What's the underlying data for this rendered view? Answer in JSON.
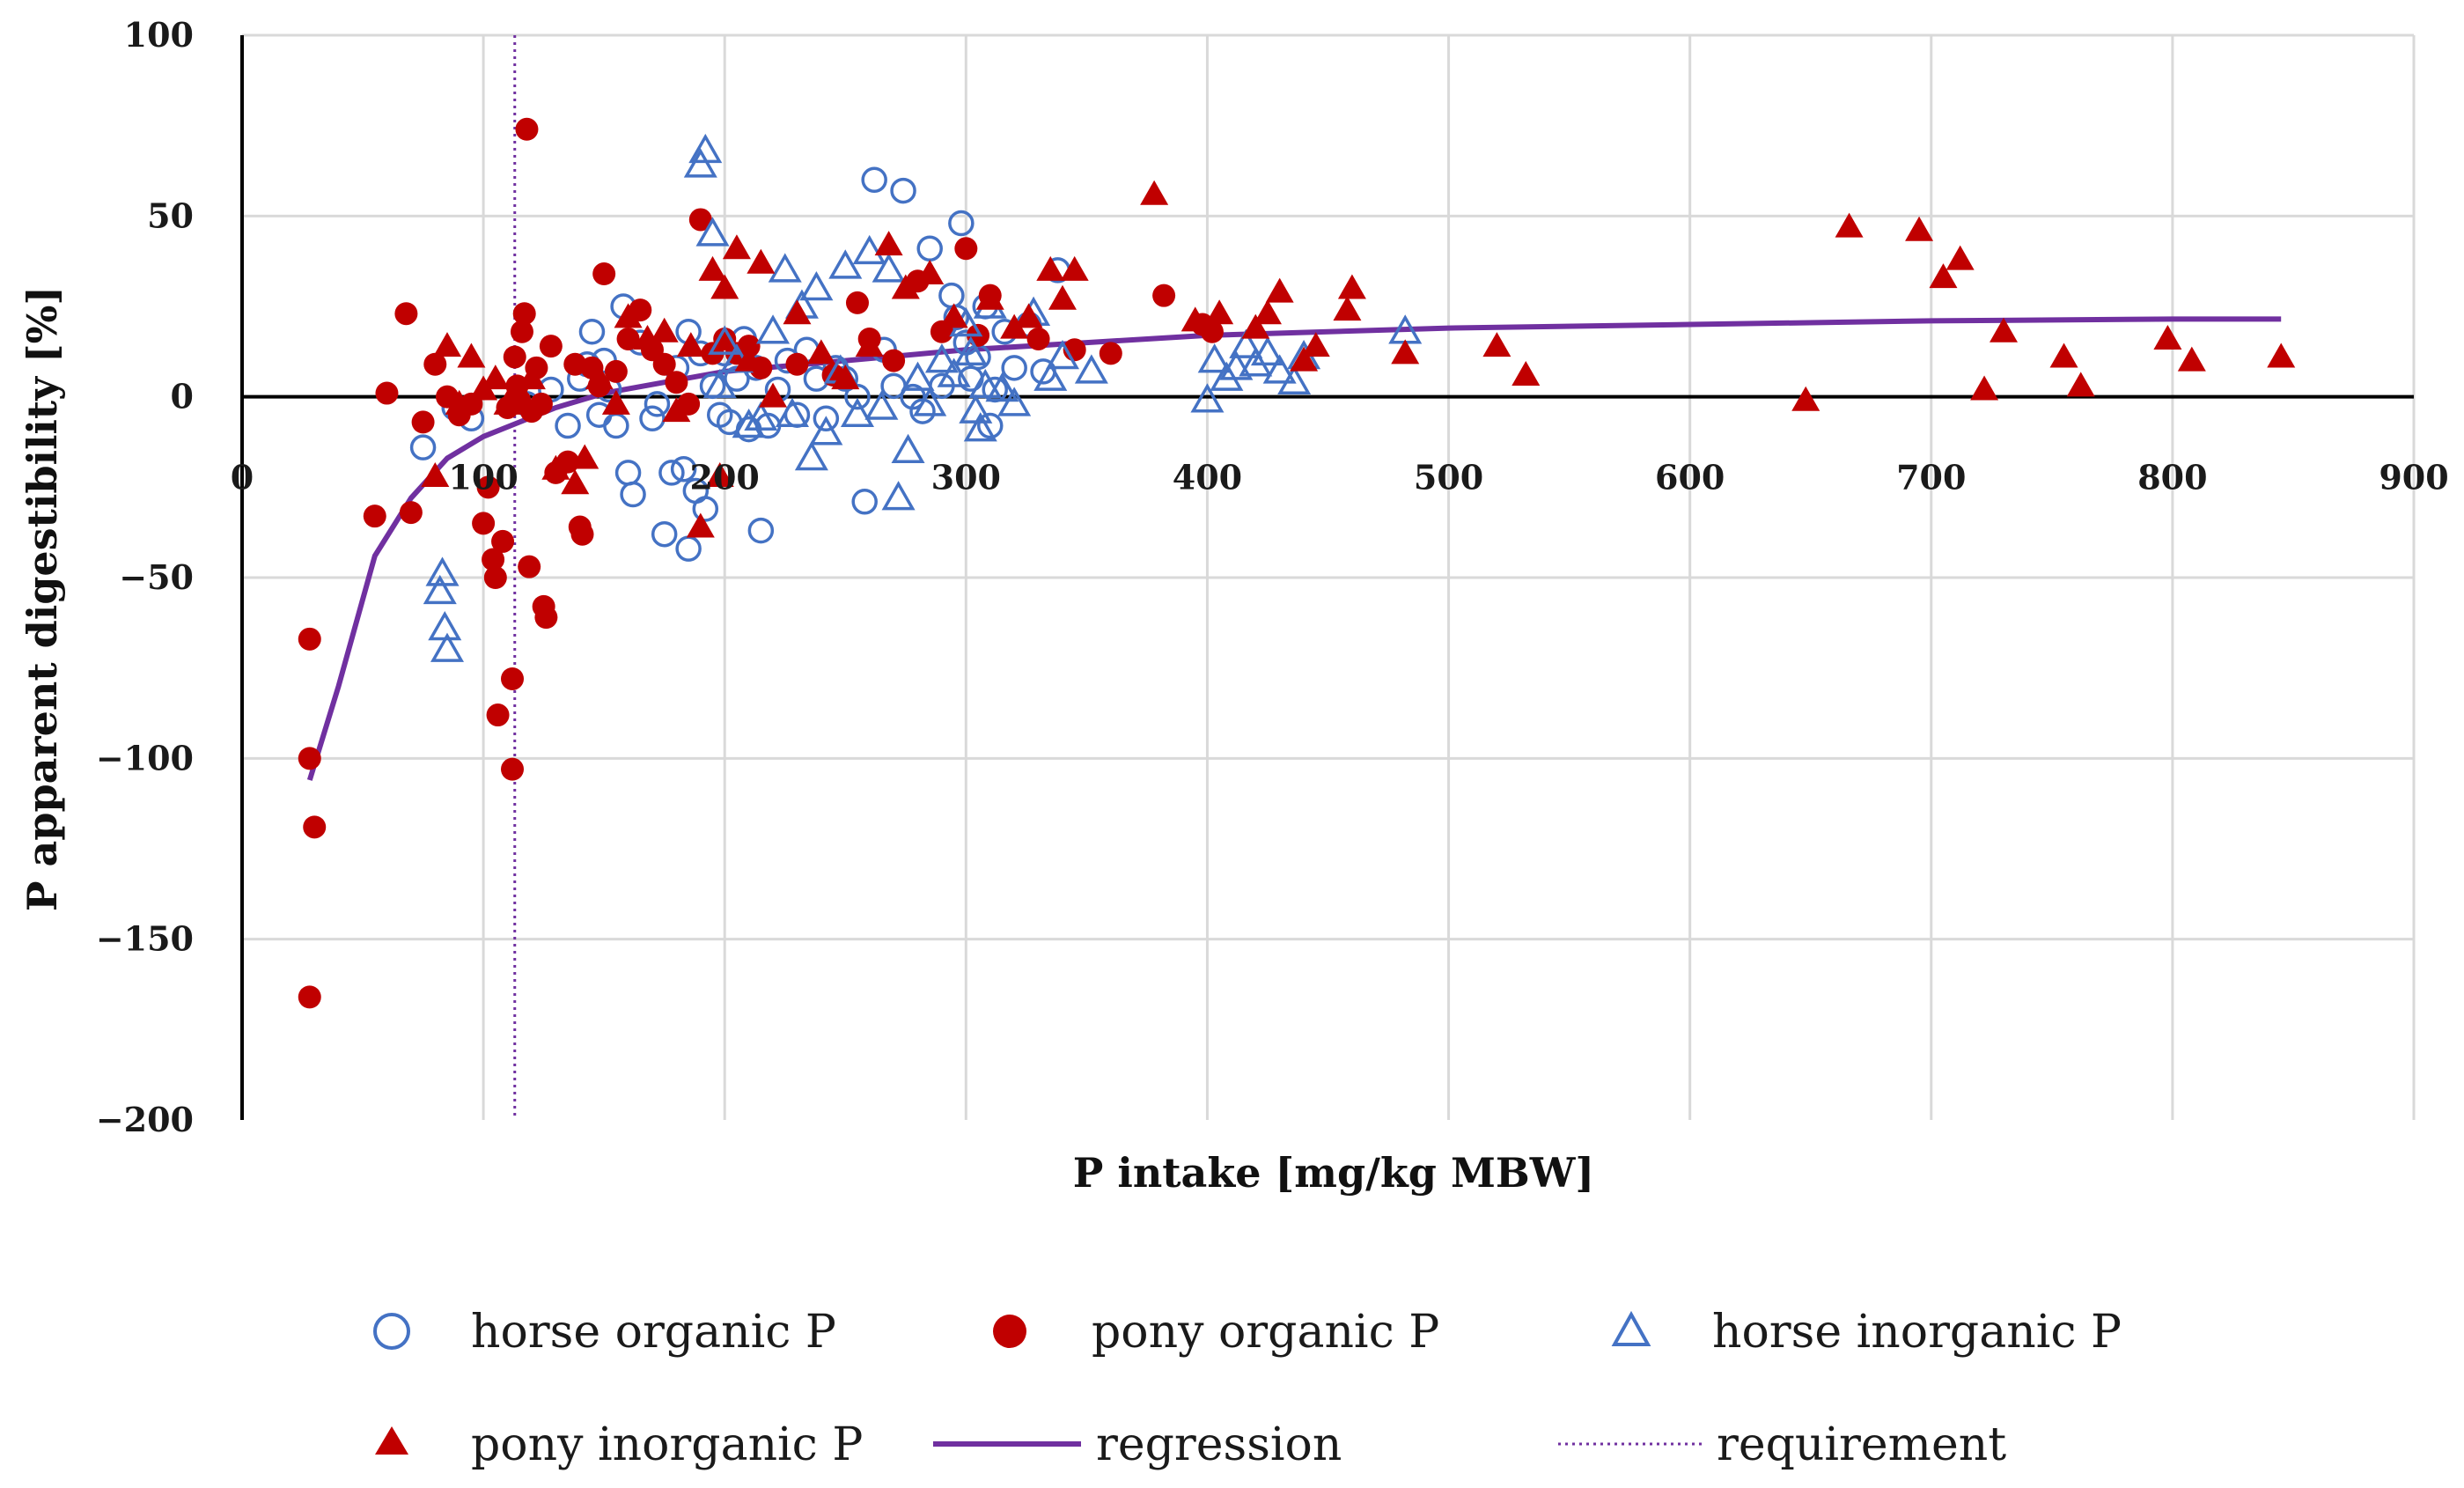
{
  "chart_data": {
    "type": "scatter",
    "title": "",
    "xlabel": "P intake [mg/kg MBW]",
    "ylabel": "P apparent digestibility [%]",
    "xlim": [
      0,
      900
    ],
    "ylim": [
      -200,
      100
    ],
    "x_ticks": [
      0,
      100,
      200,
      300,
      400,
      500,
      600,
      700,
      800,
      900
    ],
    "y_ticks": [
      100,
      50,
      0,
      -50,
      -100,
      -150,
      -200
    ],
    "y_tick_labels": [
      "100",
      "50",
      "0",
      "−50",
      "−100",
      "−150",
      "−200"
    ],
    "grid": true,
    "legend_position": "bottom",
    "colors": {
      "blue": "#4472c4",
      "red": "#c00000",
      "purple": "#7030a0"
    },
    "series": [
      {
        "name": "horse organic P",
        "marker": "circle-open",
        "color": "#4472c4",
        "points": [
          [
            75,
            -14
          ],
          [
            88,
            -3
          ],
          [
            95,
            -6
          ],
          [
            118,
            -2
          ],
          [
            128,
            2
          ],
          [
            135,
            -8
          ],
          [
            140,
            5
          ],
          [
            143,
            9
          ],
          [
            145,
            18
          ],
          [
            148,
            -5
          ],
          [
            150,
            10
          ],
          [
            152,
            2
          ],
          [
            155,
            -8
          ],
          [
            158,
            25
          ],
          [
            160,
            -21
          ],
          [
            162,
            -27
          ],
          [
            165,
            15
          ],
          [
            170,
            -6
          ],
          [
            172,
            -2
          ],
          [
            175,
            -38
          ],
          [
            178,
            -21
          ],
          [
            180,
            8
          ],
          [
            183,
            -20
          ],
          [
            185,
            -42
          ],
          [
            185,
            18
          ],
          [
            188,
            -26
          ],
          [
            190,
            12
          ],
          [
            192,
            -31
          ],
          [
            195,
            3
          ],
          [
            198,
            -5
          ],
          [
            200,
            12
          ],
          [
            202,
            -7
          ],
          [
            205,
            5
          ],
          [
            208,
            16
          ],
          [
            210,
            -9
          ],
          [
            213,
            8
          ],
          [
            215,
            -37
          ],
          [
            218,
            -8
          ],
          [
            222,
            2
          ],
          [
            226,
            10
          ],
          [
            230,
            -5
          ],
          [
            234,
            13
          ],
          [
            238,
            5
          ],
          [
            242,
            -6
          ],
          [
            246,
            8
          ],
          [
            250,
            5
          ],
          [
            255,
            0
          ],
          [
            258,
            -29
          ],
          [
            262,
            60
          ],
          [
            266,
            13
          ],
          [
            270,
            3
          ],
          [
            274,
            57
          ],
          [
            278,
            0
          ],
          [
            282,
            -4
          ],
          [
            285,
            41
          ],
          [
            290,
            3
          ],
          [
            294,
            28
          ],
          [
            296,
            22
          ],
          [
            298,
            48
          ],
          [
            300,
            15
          ],
          [
            302,
            5
          ],
          [
            305,
            11
          ],
          [
            308,
            25
          ],
          [
            310,
            -8
          ],
          [
            312,
            2
          ],
          [
            316,
            18
          ],
          [
            320,
            8
          ],
          [
            326,
            20
          ],
          [
            332,
            7
          ],
          [
            338,
            35
          ]
        ]
      },
      {
        "name": "pony organic P",
        "marker": "circle-filled",
        "color": "#c00000",
        "points": [
          [
            28,
            -67
          ],
          [
            28,
            -100
          ],
          [
            30,
            -119
          ],
          [
            28,
            -166
          ],
          [
            55,
            -33
          ],
          [
            60,
            1
          ],
          [
            68,
            23
          ],
          [
            70,
            -32
          ],
          [
            75,
            -7
          ],
          [
            80,
            9
          ],
          [
            85,
            0
          ],
          [
            90,
            -5
          ],
          [
            95,
            -2
          ],
          [
            100,
            -35
          ],
          [
            102,
            -25
          ],
          [
            104,
            -45
          ],
          [
            105,
            -50
          ],
          [
            106,
            -88
          ],
          [
            108,
            -40
          ],
          [
            110,
            -3
          ],
          [
            112,
            -78
          ],
          [
            112,
            -103
          ],
          [
            113,
            11
          ],
          [
            114,
            3
          ],
          [
            115,
            -1
          ],
          [
            116,
            18
          ],
          [
            117,
            23
          ],
          [
            118,
            74
          ],
          [
            119,
            -47
          ],
          [
            120,
            -4
          ],
          [
            122,
            8
          ],
          [
            124,
            -2
          ],
          [
            125,
            -58
          ],
          [
            126,
            -61
          ],
          [
            128,
            14
          ],
          [
            130,
            -21
          ],
          [
            135,
            -18
          ],
          [
            138,
            9
          ],
          [
            140,
            -36
          ],
          [
            141,
            -38
          ],
          [
            145,
            8
          ],
          [
            148,
            3
          ],
          [
            150,
            34
          ],
          [
            155,
            7
          ],
          [
            160,
            16
          ],
          [
            165,
            24
          ],
          [
            170,
            13
          ],
          [
            175,
            9
          ],
          [
            180,
            4
          ],
          [
            185,
            -2
          ],
          [
            190,
            49
          ],
          [
            195,
            12
          ],
          [
            200,
            16
          ],
          [
            205,
            12
          ],
          [
            210,
            14
          ],
          [
            215,
            8
          ],
          [
            230,
            9
          ],
          [
            245,
            6
          ],
          [
            255,
            26
          ],
          [
            260,
            16
          ],
          [
            270,
            10
          ],
          [
            280,
            32
          ],
          [
            290,
            18
          ],
          [
            300,
            41
          ],
          [
            305,
            17
          ],
          [
            310,
            28
          ],
          [
            330,
            16
          ],
          [
            345,
            13
          ],
          [
            360,
            12
          ],
          [
            382,
            28
          ],
          [
            398,
            20
          ],
          [
            402,
            18
          ]
        ]
      },
      {
        "name": "horse inorganic P",
        "marker": "triangle-open",
        "color": "#4472c4",
        "points": [
          [
            82,
            -54
          ],
          [
            83,
            -49
          ],
          [
            84,
            -64
          ],
          [
            85,
            -70
          ],
          [
            190,
            64
          ],
          [
            192,
            68
          ],
          [
            195,
            45
          ],
          [
            198,
            3
          ],
          [
            200,
            15
          ],
          [
            205,
            10
          ],
          [
            210,
            -8
          ],
          [
            215,
            -6
          ],
          [
            220,
            18
          ],
          [
            225,
            35
          ],
          [
            228,
            -5
          ],
          [
            232,
            25
          ],
          [
            236,
            -17
          ],
          [
            238,
            30
          ],
          [
            242,
            -10
          ],
          [
            248,
            7
          ],
          [
            250,
            36
          ],
          [
            255,
            -5
          ],
          [
            260,
            40
          ],
          [
            265,
            -3
          ],
          [
            268,
            35
          ],
          [
            272,
            -28
          ],
          [
            276,
            -15
          ],
          [
            280,
            5
          ],
          [
            285,
            -2
          ],
          [
            290,
            10
          ],
          [
            295,
            6
          ],
          [
            300,
            20
          ],
          [
            302,
            12
          ],
          [
            304,
            -4
          ],
          [
            306,
            -9
          ],
          [
            308,
            3
          ],
          [
            310,
            25
          ],
          [
            315,
            2
          ],
          [
            320,
            -2
          ],
          [
            328,
            23
          ],
          [
            335,
            5
          ],
          [
            340,
            11
          ],
          [
            352,
            7
          ],
          [
            400,
            -1
          ],
          [
            403,
            10
          ],
          [
            408,
            5
          ],
          [
            412,
            8
          ],
          [
            416,
            14
          ],
          [
            420,
            9
          ],
          [
            425,
            12
          ],
          [
            430,
            7
          ],
          [
            436,
            4
          ],
          [
            440,
            11
          ],
          [
            482,
            18
          ]
        ]
      },
      {
        "name": "pony inorganic P",
        "marker": "triangle-filled",
        "color": "#c00000",
        "points": [
          [
            80,
            -22
          ],
          [
            85,
            14
          ],
          [
            90,
            -2
          ],
          [
            95,
            11
          ],
          [
            100,
            2
          ],
          [
            105,
            5
          ],
          [
            110,
            -2
          ],
          [
            115,
            -1
          ],
          [
            120,
            5
          ],
          [
            130,
            -20
          ],
          [
            138,
            -24
          ],
          [
            142,
            -17
          ],
          [
            148,
            5
          ],
          [
            155,
            -2
          ],
          [
            160,
            22
          ],
          [
            168,
            16
          ],
          [
            175,
            18
          ],
          [
            180,
            -4
          ],
          [
            186,
            14
          ],
          [
            190,
            -36
          ],
          [
            195,
            35
          ],
          [
            198,
            -22
          ],
          [
            200,
            30
          ],
          [
            205,
            41
          ],
          [
            210,
            10
          ],
          [
            215,
            37
          ],
          [
            220,
            0
          ],
          [
            230,
            23
          ],
          [
            240,
            12
          ],
          [
            250,
            5
          ],
          [
            260,
            14
          ],
          [
            268,
            42
          ],
          [
            275,
            30
          ],
          [
            285,
            34
          ],
          [
            295,
            22
          ],
          [
            310,
            27
          ],
          [
            320,
            19
          ],
          [
            326,
            22
          ],
          [
            335,
            35
          ],
          [
            340,
            27
          ],
          [
            345,
            35
          ],
          [
            378,
            56
          ],
          [
            395,
            21
          ],
          [
            405,
            23
          ],
          [
            420,
            19
          ],
          [
            425,
            23
          ],
          [
            430,
            29
          ],
          [
            440,
            10
          ],
          [
            445,
            14
          ],
          [
            458,
            24
          ],
          [
            460,
            30
          ],
          [
            482,
            12
          ],
          [
            520,
            14
          ],
          [
            532,
            6
          ],
          [
            648,
            -1
          ],
          [
            666,
            47
          ],
          [
            695,
            46
          ],
          [
            705,
            33
          ],
          [
            712,
            38
          ],
          [
            722,
            2
          ],
          [
            730,
            18
          ],
          [
            755,
            11
          ],
          [
            762,
            3
          ],
          [
            798,
            16
          ],
          [
            808,
            10
          ],
          [
            845,
            11
          ]
        ]
      },
      {
        "name": "regression",
        "marker": "line",
        "color": "#7030a0",
        "points": [
          [
            28,
            -106
          ],
          [
            40,
            -80
          ],
          [
            55,
            -44
          ],
          [
            70,
            -28
          ],
          [
            85,
            -17
          ],
          [
            100,
            -11
          ],
          [
            115,
            -7
          ],
          [
            130,
            -3
          ],
          [
            150,
            1
          ],
          [
            175,
            4
          ],
          [
            200,
            7
          ],
          [
            250,
            10
          ],
          [
            300,
            13
          ],
          [
            350,
            15
          ],
          [
            400,
            17
          ],
          [
            450,
            18
          ],
          [
            500,
            19
          ],
          [
            600,
            20
          ],
          [
            700,
            21
          ],
          [
            800,
            21.5
          ],
          [
            845,
            21.5
          ]
        ]
      },
      {
        "name": "requirement",
        "marker": "dotted-vline",
        "color": "#7030a0",
        "x": 113
      }
    ]
  }
}
